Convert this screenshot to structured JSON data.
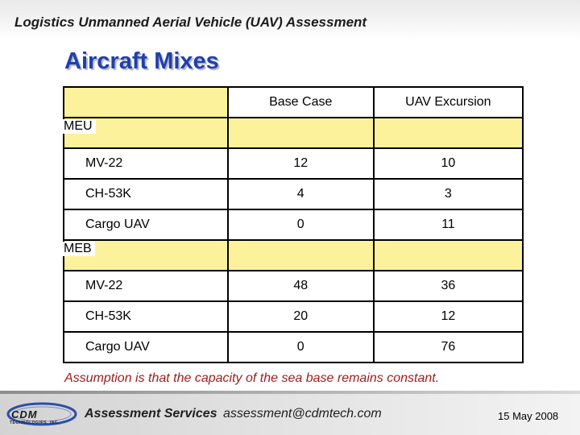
{
  "header": {
    "title": "Logistics Unmanned Aerial Vehicle (UAV) Assessment"
  },
  "slide": {
    "title": "Aircraft Mixes"
  },
  "table": {
    "columns": [
      "Base Case",
      "UAV Excursion"
    ],
    "groups": [
      {
        "name": "MEU",
        "rows": [
          {
            "label": "MV-22",
            "base": "12",
            "excursion": "10"
          },
          {
            "label": "CH-53K",
            "base": "4",
            "excursion": "3"
          },
          {
            "label": "Cargo UAV",
            "base": "0",
            "excursion": "11"
          }
        ]
      },
      {
        "name": "MEB",
        "rows": [
          {
            "label": "MV-22",
            "base": "48",
            "excursion": "36"
          },
          {
            "label": "CH-53K",
            "base": "20",
            "excursion": "12"
          },
          {
            "label": "Cargo UAV",
            "base": "0",
            "excursion": "76"
          }
        ]
      }
    ]
  },
  "note": "Assumption is that the capacity of the sea base remains constant.",
  "footer": {
    "logo_text": "CDM",
    "logo_subtext": "TECHNOLOGIES, INC.",
    "service": "Assessment Services",
    "email": "assessment@cdmtech.com",
    "date": "15 May 2008"
  },
  "colors": {
    "title_blue": "#1f3fb0",
    "cell_yellow": "#fcf29b",
    "note_red": "#9c1c1c"
  }
}
